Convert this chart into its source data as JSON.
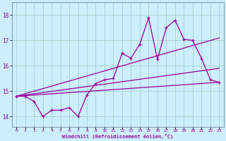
{
  "xlabel": "Windchill (Refroidissement éolien,°C)",
  "bg_color": "#cceeff",
  "line_color": "#990099",
  "grid_color": "#99ccbb",
  "xlim": [
    -0.5,
    23.5
  ],
  "ylim": [
    13.6,
    18.5
  ],
  "xticks": [
    0,
    1,
    2,
    3,
    4,
    5,
    6,
    7,
    8,
    9,
    10,
    11,
    12,
    13,
    14,
    15,
    16,
    17,
    18,
    19,
    20,
    21,
    22,
    23
  ],
  "yticks": [
    14,
    15,
    16,
    17,
    18
  ],
  "main_x": [
    0,
    1,
    2,
    3,
    4,
    5,
    6,
    7,
    8,
    9,
    10,
    11,
    12,
    13,
    14,
    15,
    16,
    17,
    18,
    19,
    20,
    21,
    22,
    23
  ],
  "main_y": [
    14.8,
    14.8,
    14.6,
    14.0,
    14.25,
    14.25,
    14.35,
    14.0,
    14.85,
    15.3,
    15.45,
    15.5,
    16.5,
    16.3,
    16.85,
    17.9,
    16.25,
    17.5,
    17.8,
    17.05,
    17.0,
    16.3,
    15.45,
    15.35
  ],
  "trend1_x": [
    0,
    23
  ],
  "trend1_y": [
    14.8,
    15.35
  ],
  "trend2_x": [
    0,
    23
  ],
  "trend2_y": [
    14.8,
    15.9
  ],
  "trend3_x": [
    0,
    23
  ],
  "trend3_y": [
    14.8,
    17.1
  ]
}
